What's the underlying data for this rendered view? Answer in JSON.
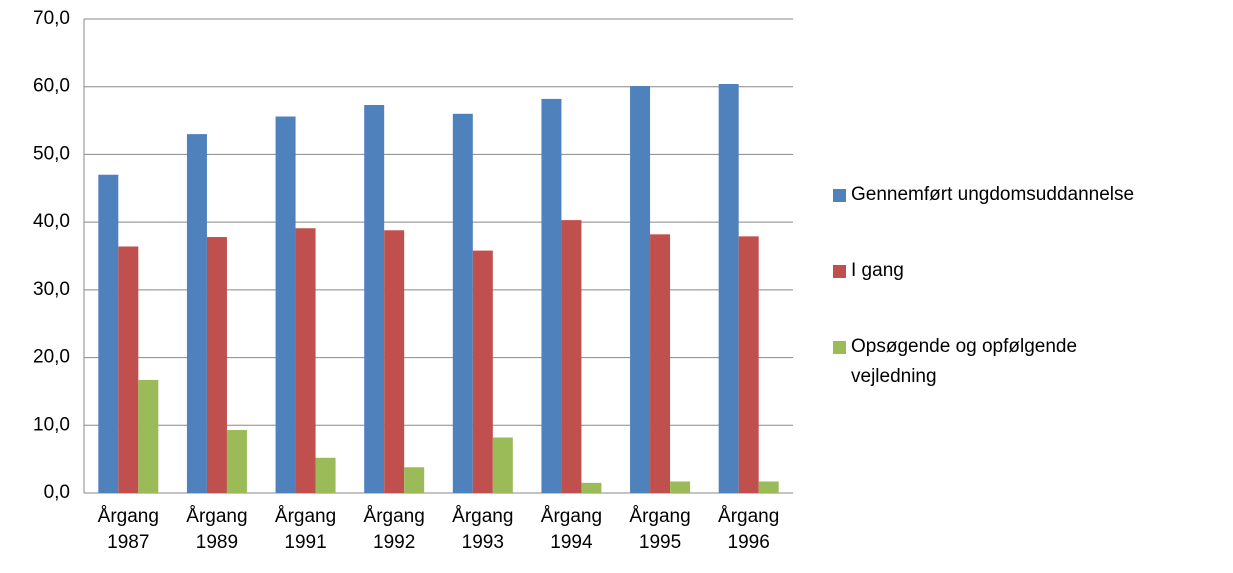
{
  "chart_data": {
    "type": "bar",
    "categories": [
      "Årgang 1987",
      "Årgang 1989",
      "Årgang 1991",
      "Årgang 1992",
      "Årgang 1993",
      "Årgang 1994",
      "Årgang 1995",
      "Årgang 1996"
    ],
    "series": [
      {
        "name": "Gennemført ungdomsuddannelse",
        "color": "#4f81bd",
        "values": [
          47.0,
          53.0,
          55.6,
          57.3,
          56.0,
          58.2,
          60.1,
          60.4
        ]
      },
      {
        "name": "I gang",
        "color": "#c0504d",
        "values": [
          36.4,
          37.8,
          39.1,
          38.8,
          35.8,
          40.3,
          38.2,
          37.9
        ]
      },
      {
        "name": "Opsøgende og opfølgende vejledning",
        "color": "#9bbb59",
        "values": [
          16.7,
          9.3,
          5.2,
          3.8,
          8.2,
          1.5,
          1.7,
          1.7
        ]
      }
    ],
    "ylim": [
      0,
      70
    ],
    "yticks": [
      {
        "value": 0,
        "label": "0,0"
      },
      {
        "value": 10,
        "label": "10,0"
      },
      {
        "value": 20,
        "label": "20,0"
      },
      {
        "value": 30,
        "label": "30,0"
      },
      {
        "value": 40,
        "label": "40,0"
      },
      {
        "value": 50,
        "label": "50,0"
      },
      {
        "value": 60,
        "label": "60,0"
      },
      {
        "value": 70,
        "label": "70,0"
      }
    ],
    "grid": true,
    "legend": "right"
  }
}
